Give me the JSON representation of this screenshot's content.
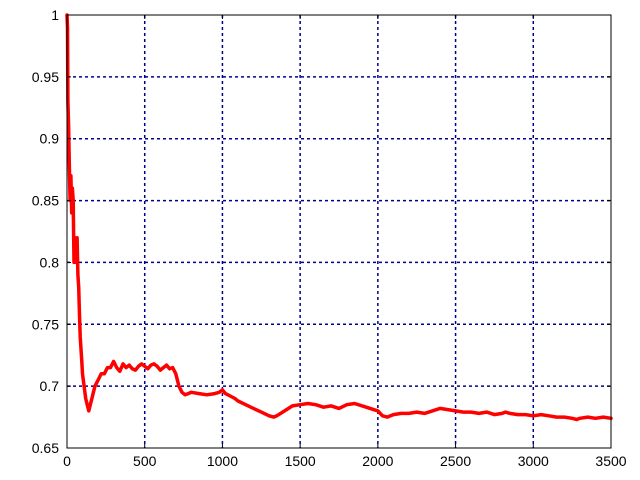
{
  "chart_data": {
    "type": "line",
    "title": "",
    "xlabel": "",
    "ylabel": "",
    "xlim": [
      0,
      3500
    ],
    "ylim": [
      0.65,
      1
    ],
    "grid": true,
    "x_ticks": [
      0,
      500,
      1000,
      1500,
      2000,
      2500,
      3000,
      3500
    ],
    "y_ticks": [
      0.65,
      0.7,
      0.75,
      0.8,
      0.85,
      0.9,
      0.95,
      1
    ],
    "x_tick_labels": [
      "0",
      "500",
      "1000",
      "1500",
      "2000",
      "2500",
      "3000",
      "3500"
    ],
    "y_tick_labels": [
      "0.65",
      "0.7",
      "0.75",
      "0.8",
      "0.85",
      "0.9",
      "0.95",
      "1"
    ],
    "colors": {
      "line": "#ff0000",
      "grid": "#00008b",
      "axes": "#000000"
    },
    "series": [
      {
        "x": [
          0,
          3,
          6,
          10,
          15,
          20,
          25,
          30,
          35,
          40,
          45,
          50,
          55,
          60,
          65,
          70,
          75,
          80,
          85,
          90,
          95,
          100,
          110,
          120,
          130,
          140,
          150,
          160,
          170,
          180,
          200,
          220,
          240,
          260,
          280,
          300,
          320,
          340,
          360,
          380,
          400,
          420,
          440,
          460,
          480,
          500,
          520,
          540,
          560,
          580,
          600,
          620,
          640,
          660,
          680,
          700,
          720,
          740,
          760,
          780,
          800,
          850,
          900,
          950,
          980,
          1000,
          1020,
          1050,
          1080,
          1100,
          1150,
          1200,
          1250,
          1300,
          1330,
          1350,
          1400,
          1450,
          1500,
          1550,
          1600,
          1650,
          1700,
          1750,
          1800,
          1850,
          1900,
          1950,
          2000,
          2030,
          2060,
          2100,
          2150,
          2200,
          2250,
          2300,
          2350,
          2400,
          2450,
          2500,
          2550,
          2600,
          2650,
          2700,
          2750,
          2800,
          2820,
          2850,
          2900,
          2950,
          3000,
          3050,
          3100,
          3150,
          3200,
          3250,
          3280,
          3300,
          3350,
          3400,
          3450,
          3500
        ],
        "y": [
          1.0,
          0.99,
          0.93,
          0.91,
          0.88,
          0.85,
          0.87,
          0.84,
          0.86,
          0.85,
          0.8,
          0.82,
          0.81,
          0.8,
          0.82,
          0.79,
          0.78,
          0.76,
          0.74,
          0.73,
          0.72,
          0.71,
          0.7,
          0.69,
          0.685,
          0.68,
          0.685,
          0.69,
          0.695,
          0.7,
          0.705,
          0.71,
          0.71,
          0.715,
          0.715,
          0.72,
          0.715,
          0.712,
          0.718,
          0.715,
          0.717,
          0.714,
          0.713,
          0.716,
          0.718,
          0.716,
          0.714,
          0.717,
          0.718,
          0.716,
          0.713,
          0.715,
          0.717,
          0.714,
          0.715,
          0.71,
          0.7,
          0.695,
          0.693,
          0.694,
          0.695,
          0.694,
          0.693,
          0.694,
          0.695,
          0.697,
          0.694,
          0.692,
          0.69,
          0.688,
          0.685,
          0.682,
          0.679,
          0.676,
          0.675,
          0.676,
          0.68,
          0.684,
          0.685,
          0.686,
          0.685,
          0.683,
          0.684,
          0.682,
          0.685,
          0.686,
          0.684,
          0.682,
          0.68,
          0.676,
          0.675,
          0.677,
          0.678,
          0.678,
          0.679,
          0.678,
          0.68,
          0.682,
          0.681,
          0.68,
          0.679,
          0.679,
          0.678,
          0.679,
          0.677,
          0.678,
          0.679,
          0.678,
          0.677,
          0.677,
          0.676,
          0.677,
          0.676,
          0.675,
          0.675,
          0.674,
          0.673,
          0.674,
          0.675,
          0.674,
          0.675,
          0.674
        ]
      }
    ]
  }
}
